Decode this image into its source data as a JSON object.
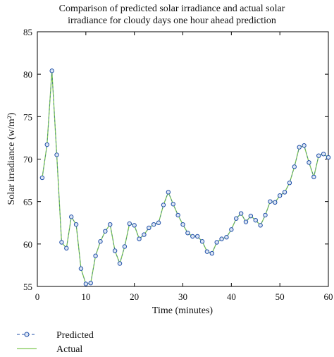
{
  "chart_data": {
    "type": "line",
    "title": [
      "Comparison of predicted solar irradiance and actual solar",
      "irradiance for cloudy days one hour ahead prediction"
    ],
    "xlabel": "Time (minutes)",
    "ylabel": "Solar irradiance (w/m²)",
    "xlim": [
      0,
      60
    ],
    "ylim": [
      55,
      85
    ],
    "xticks": [
      0,
      10,
      20,
      30,
      40,
      50,
      60
    ],
    "yticks": [
      55,
      60,
      65,
      70,
      75,
      80,
      85
    ],
    "grid": false,
    "legend": "bottom-left",
    "x": [
      1,
      2,
      3,
      4,
      5,
      6,
      7,
      8,
      9,
      10,
      11,
      12,
      13,
      14,
      15,
      16,
      17,
      18,
      19,
      20,
      21,
      22,
      23,
      24,
      25,
      26,
      27,
      28,
      29,
      30,
      31,
      32,
      33,
      34,
      35,
      36,
      37,
      38,
      39,
      40,
      41,
      42,
      43,
      44,
      45,
      46,
      47,
      48,
      49,
      50,
      51,
      52,
      53,
      54,
      55,
      56,
      57,
      58,
      59,
      60
    ],
    "series": [
      {
        "name": "Predicted",
        "color": "#1f4fa8",
        "marker": "circle",
        "line": "dashed",
        "values": [
          67.8,
          71.7,
          80.4,
          70.5,
          60.2,
          59.5,
          63.2,
          62.3,
          57.1,
          55.3,
          55.4,
          58.6,
          60.3,
          61.5,
          62.3,
          59.2,
          57.7,
          59.7,
          62.4,
          62.2,
          60.6,
          61.1,
          61.9,
          62.3,
          62.5,
          64.6,
          66.1,
          64.7,
          63.4,
          62.3,
          61.3,
          60.9,
          60.9,
          60.3,
          59.1,
          58.9,
          60.2,
          60.6,
          60.8,
          61.7,
          63.0,
          63.6,
          62.6,
          63.3,
          62.8,
          62.2,
          63.4,
          65.0,
          64.9,
          65.7,
          66.1,
          67.2,
          69.1,
          71.4,
          71.6,
          69.6,
          67.9,
          70.4,
          70.6,
          70.2
        ]
      },
      {
        "name": "Actual",
        "color": "#7ec850",
        "marker": "none",
        "line": "solid",
        "values": [
          67.8,
          71.7,
          80.4,
          70.5,
          60.2,
          59.5,
          63.2,
          62.3,
          57.1,
          55.3,
          55.4,
          58.6,
          60.3,
          61.5,
          62.3,
          59.2,
          57.7,
          59.7,
          62.4,
          62.2,
          60.6,
          61.1,
          61.9,
          62.3,
          62.5,
          64.6,
          66.1,
          64.7,
          63.4,
          62.3,
          61.3,
          60.9,
          60.9,
          60.3,
          59.1,
          58.9,
          60.2,
          60.6,
          60.8,
          61.7,
          63.0,
          63.6,
          62.6,
          63.3,
          62.8,
          62.2,
          63.4,
          65.0,
          64.9,
          65.7,
          66.1,
          67.2,
          69.1,
          71.4,
          71.6,
          69.6,
          67.9,
          70.4,
          70.6,
          70.2
        ]
      }
    ]
  }
}
